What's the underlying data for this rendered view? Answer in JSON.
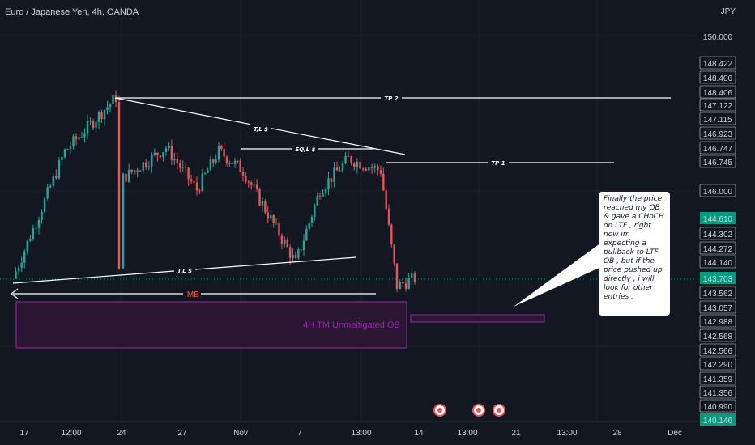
{
  "header": {
    "symbol_title": "Euro / Japanese Yen, 4h, OANDA",
    "currency": "JPY"
  },
  "price_axis": {
    "labels": [
      "150.000",
      "148.422",
      "148.406",
      "148.406",
      "147.122",
      "147.115",
      "146.923",
      "146.747",
      "146.745",
      "146.000",
      "144.610",
      "144.302",
      "144.272",
      "144.140",
      "143.703",
      "143.562",
      "143.057",
      "142.988",
      "142.568",
      "142.566",
      "142.290",
      "141.359",
      "141.356",
      "140.990",
      "140.146"
    ],
    "highlighted": {
      "144.610": "#089981",
      "143.703": "#089981",
      "140.146": "#089981"
    }
  },
  "time_axis": {
    "labels": [
      "17",
      "12:00",
      "24",
      "27",
      "Nov",
      "7",
      "13:00",
      "14",
      "13:00",
      "21",
      "13:00",
      "28",
      "Dec"
    ]
  },
  "annotations": {
    "tp2": "TP 2",
    "tp1": "TP 1",
    "tl_top": "T,L $",
    "eql": "EQ,L $",
    "tl_bottom": "T,L $",
    "imb": "IMB",
    "ob_box": "4H TM Unmeitigated OB",
    "callout": "Finally the price reached my OB , & gave a CHoCH on LTF , right now im expecting a pullback to LTF OB , but if the price pushed up directly , i will look for other entries ."
  },
  "colors": {
    "background": "#131722",
    "bull": "#26a69a",
    "bear": "#ef5350",
    "ob_fill": "#2a1533",
    "ob_border": "#9c27b0",
    "current_price": "#089981"
  },
  "chart_data": {
    "type": "candlestick",
    "instrument": "Euro / Japanese Yen",
    "timeframe": "4h",
    "currency": "JPY",
    "current_price": 143.703,
    "ylim": [
      140.0,
      150.3
    ],
    "path_keypoints": [
      {
        "x": "17",
        "y": 143.7
      },
      {
        "x": "12:00",
        "y": 147.0
      },
      {
        "x": "24",
        "y": 148.4
      },
      {
        "x": "24",
        "y": 143.9
      },
      {
        "x": "24",
        "y": 146.3
      },
      {
        "x": "27",
        "y": 147.1
      },
      {
        "x": "27",
        "y": 146.0
      },
      {
        "x": "27",
        "y": 147.0
      },
      {
        "x": "Nov",
        "y": 146.5
      },
      {
        "x": "7",
        "y": 144.1
      },
      {
        "x": "7",
        "y": 146.0
      },
      {
        "x": "13:00",
        "y": 146.8
      },
      {
        "x": "13:00",
        "y": 146.5
      },
      {
        "x": "14",
        "y": 143.5
      },
      {
        "x": "14",
        "y": 143.7
      }
    ]
  }
}
